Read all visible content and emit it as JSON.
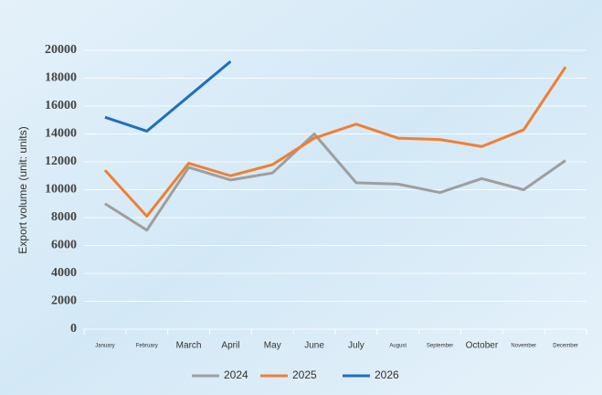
{
  "chart_data": {
    "type": "line",
    "y_label": "Export volume (unit: units)",
    "categories": [
      "January",
      "February",
      "March",
      "April",
      "May",
      "June",
      "July",
      "August",
      "September",
      "October",
      "November",
      "December"
    ],
    "series": [
      {
        "name": "2024",
        "color": "#9e9e9e",
        "values": [
          9000,
          7100,
          11600,
          10700,
          11200,
          14000,
          10500,
          10400,
          9800,
          10800,
          10000,
          12100
        ]
      },
      {
        "name": "2025",
        "color": "#f07f32",
        "values": [
          11400,
          8100,
          11900,
          11000,
          11800,
          13700,
          14700,
          13700,
          13600,
          13100,
          14300,
          18800
        ]
      },
      {
        "name": "2026",
        "color": "#1f6fbf",
        "values": [
          15200,
          14200,
          16700,
          19200,
          null,
          null,
          null,
          null,
          null,
          null,
          null,
          null
        ]
      }
    ],
    "ylim": [
      0,
      20000
    ],
    "yticks": [
      0,
      2000,
      4000,
      6000,
      8000,
      10000,
      12000,
      14000,
      16000,
      18000,
      20000
    ],
    "grid": true
  }
}
